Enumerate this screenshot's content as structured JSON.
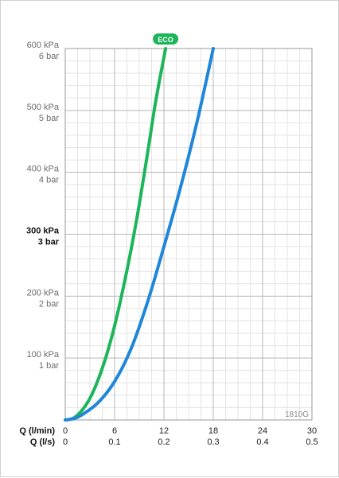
{
  "chart_data": {
    "type": "line",
    "y_ticks": [
      {
        "value": 100,
        "kpa": "100 kPa",
        "bar": "1 bar",
        "bold": false
      },
      {
        "value": 200,
        "kpa": "200 kPa",
        "bar": "2 bar",
        "bold": false
      },
      {
        "value": 300,
        "kpa": "300 kPa",
        "bar": "3 bar",
        "bold": true
      },
      {
        "value": 400,
        "kpa": "400 kPa",
        "bar": "4 bar",
        "bold": false
      },
      {
        "value": 500,
        "kpa": "500 kPa",
        "bar": "5 bar",
        "bold": false
      },
      {
        "value": 600,
        "kpa": "600 kPa",
        "bar": "6 bar",
        "bold": false
      }
    ],
    "x_ticks": [
      {
        "value": 0,
        "lmin": "0",
        "ls": "0"
      },
      {
        "value": 6,
        "lmin": "6",
        "ls": "0.1"
      },
      {
        "value": 12,
        "lmin": "12",
        "ls": "0.2"
      },
      {
        "value": 18,
        "lmin": "18",
        "ls": "0.3"
      },
      {
        "value": 24,
        "lmin": "24",
        "ls": "0.4"
      },
      {
        "value": 30,
        "lmin": "30",
        "ls": "0.5"
      }
    ],
    "xlabel_primary": "Q (l/min)",
    "xlabel_secondary": "Q (l/s)",
    "xlim": [
      0,
      30
    ],
    "ylim": [
      0,
      600
    ],
    "grid": true,
    "code_label": "1810G",
    "eco_badge": "ECO",
    "series": [
      {
        "key": "eco",
        "color": "#1db55a",
        "x": [
          0,
          1,
          2,
          3,
          4,
          5,
          6,
          7,
          8,
          9,
          10,
          11,
          12.2
        ],
        "y": [
          0,
          3,
          15,
          35,
          65,
          104,
          152,
          210,
          275,
          348,
          430,
          515,
          600
        ]
      },
      {
        "key": "standard",
        "color": "#1f86d9",
        "x": [
          0,
          1,
          2,
          4,
          6,
          8,
          10,
          12,
          14,
          16,
          18
        ],
        "y": [
          0,
          2,
          8,
          28,
          62,
          115,
          190,
          280,
          375,
          480,
          600
        ]
      }
    ]
  }
}
